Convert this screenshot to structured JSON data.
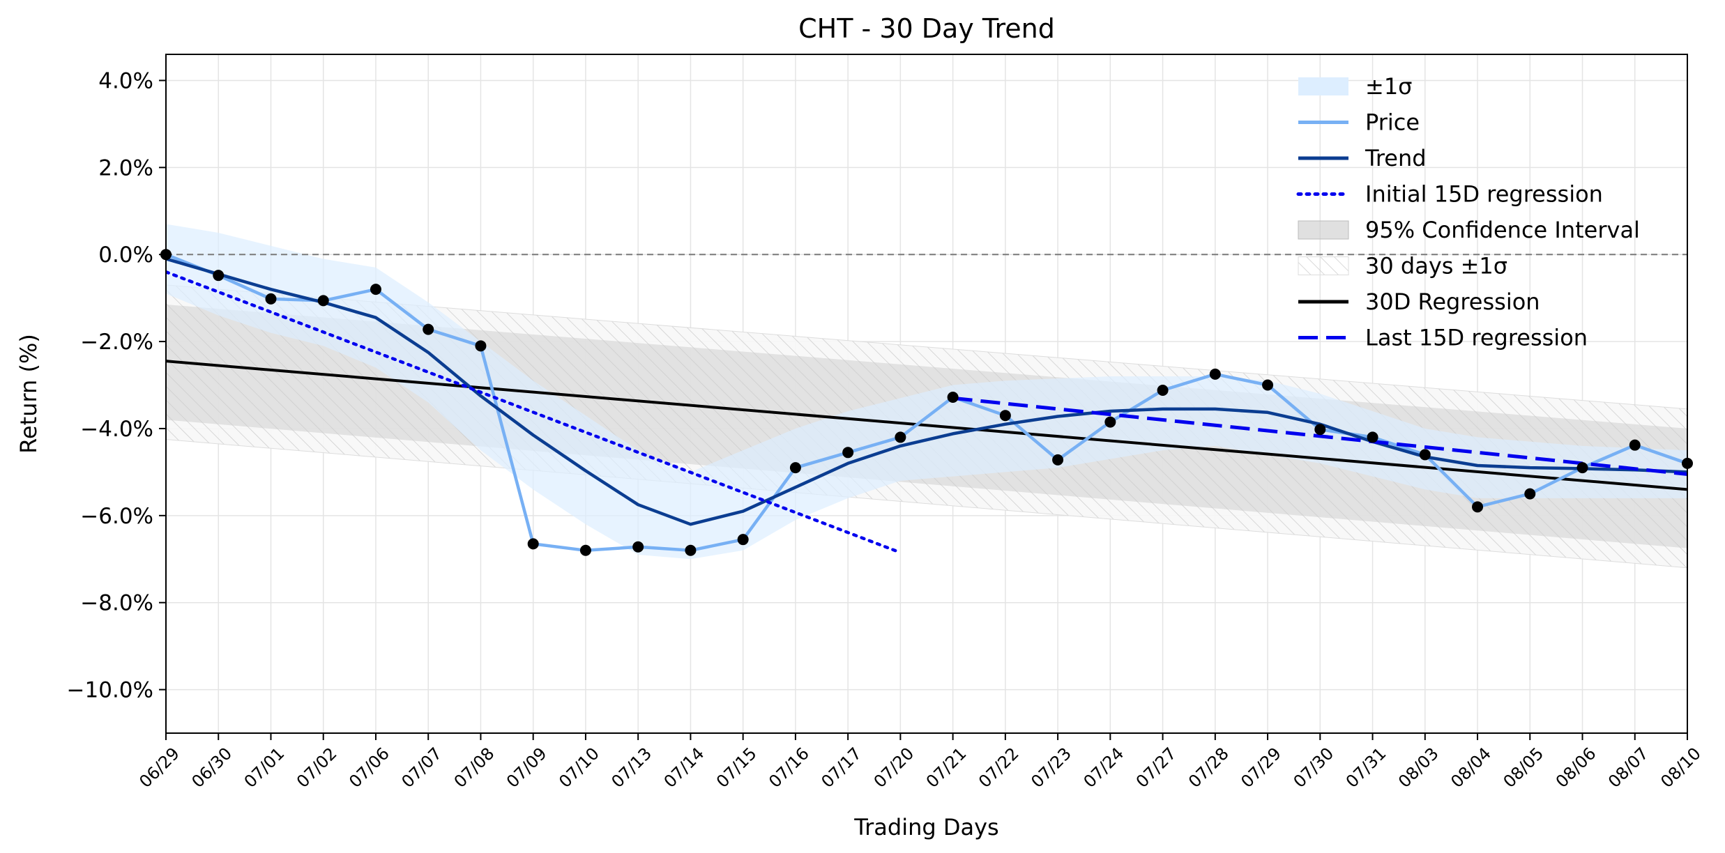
{
  "chart_data": {
    "type": "line",
    "title": "CHT - 30 Day Trend",
    "xlabel": "Trading Days",
    "ylabel": "Return (%)",
    "ylim": [
      -11.0,
      4.6
    ],
    "yticks": [
      4.0,
      2.0,
      0.0,
      -2.0,
      -4.0,
      -6.0,
      -8.0,
      -10.0
    ],
    "ytick_labels": [
      "4.0%",
      "2.0%",
      "0.0%",
      "−2.0%",
      "−4.0%",
      "−6.0%",
      "−8.0%",
      "−10.0%"
    ],
    "grid": true,
    "legend_position": "top-right",
    "categories": [
      "06/29",
      "06/30",
      "07/01",
      "07/02",
      "07/06",
      "07/07",
      "07/08",
      "07/09",
      "07/10",
      "07/13",
      "07/14",
      "07/15",
      "07/16",
      "07/17",
      "07/20",
      "07/21",
      "07/22",
      "07/23",
      "07/24",
      "07/27",
      "07/28",
      "07/29",
      "07/30",
      "07/31",
      "08/03",
      "08/04",
      "08/05",
      "08/06",
      "08/07",
      "08/10"
    ],
    "price": [
      0.0,
      -0.48,
      -1.02,
      -1.06,
      -0.8,
      -1.72,
      -2.1,
      -6.65,
      -6.8,
      -6.72,
      -6.8,
      -6.55,
      -4.9,
      -4.55,
      -4.2,
      -3.28,
      -3.7,
      -4.72,
      -3.85,
      -3.12,
      -2.75,
      -3.0,
      -4.02,
      -4.2,
      -4.6,
      -5.8,
      -5.5,
      -4.9,
      -4.38,
      -4.8
    ],
    "trend": [
      -0.1,
      -0.45,
      -0.8,
      -1.1,
      -1.45,
      -2.25,
      -3.25,
      -4.15,
      -4.97,
      -5.75,
      -6.2,
      -5.9,
      -5.35,
      -4.8,
      -4.4,
      -4.12,
      -3.9,
      -3.72,
      -3.6,
      -3.55,
      -3.55,
      -3.63,
      -3.9,
      -4.3,
      -4.65,
      -4.85,
      -4.9,
      -4.92,
      -4.95,
      -5.0
    ],
    "sigma_band": {
      "upper": [
        0.7,
        0.5,
        0.2,
        -0.1,
        -0.3,
        -1.1,
        -2.0,
        -2.9,
        -3.7,
        -4.5,
        -5.0,
        -4.5,
        -4.0,
        -3.6,
        -3.3,
        -3.0,
        -2.9,
        -2.85,
        -2.8,
        -2.8,
        -2.8,
        -2.9,
        -3.2,
        -3.6,
        -4.0,
        -4.2,
        -4.3,
        -4.4,
        -4.45,
        -4.5
      ],
      "lower": [
        -0.9,
        -1.4,
        -1.8,
        -2.1,
        -2.6,
        -3.4,
        -4.5,
        -5.4,
        -6.2,
        -6.9,
        -7.0,
        -6.8,
        -6.1,
        -5.6,
        -5.2,
        -5.1,
        -5.0,
        -4.9,
        -4.7,
        -4.5,
        -4.4,
        -4.6,
        -4.8,
        -5.1,
        -5.4,
        -5.6,
        -5.6,
        -5.6,
        -5.6,
        -5.6
      ]
    },
    "regression_30d": {
      "start": -2.45,
      "end": -5.4
    },
    "confidence_95": {
      "start_upper": -1.15,
      "start_lower": -3.8,
      "end_upper": -4.0,
      "end_lower": -6.75
    },
    "sigma_30d": {
      "start_upper": -0.7,
      "start_lower": -4.25,
      "end_upper": -3.55,
      "end_lower": -7.2
    },
    "initial_15d_regression": {
      "start_index": 0,
      "end_index": 14,
      "start": -0.4,
      "end": -6.85
    },
    "last_15d_regression": {
      "start_index": 15,
      "end_index": 29,
      "start": -3.3,
      "end": -5.05
    },
    "zero_line": 0.0,
    "legend": [
      "±1σ",
      "Price",
      "Trend",
      "Initial 15D regression",
      "95% Confidence Interval",
      "30 days ±1σ",
      "30D Regression",
      "Last 15D regression"
    ],
    "colors": {
      "price": "#77b0f4",
      "trend": "#0b3d91",
      "sigma_fill": "#ddeeff",
      "initial_reg": "#0000ee",
      "last_reg": "#0000ee",
      "regression": "#000000",
      "confidence": "#cccccc",
      "sigma30_hatch": "#c8c8c8",
      "markers": "#000000",
      "zero_line": "#808080",
      "grid": "#e4e4e4"
    }
  }
}
